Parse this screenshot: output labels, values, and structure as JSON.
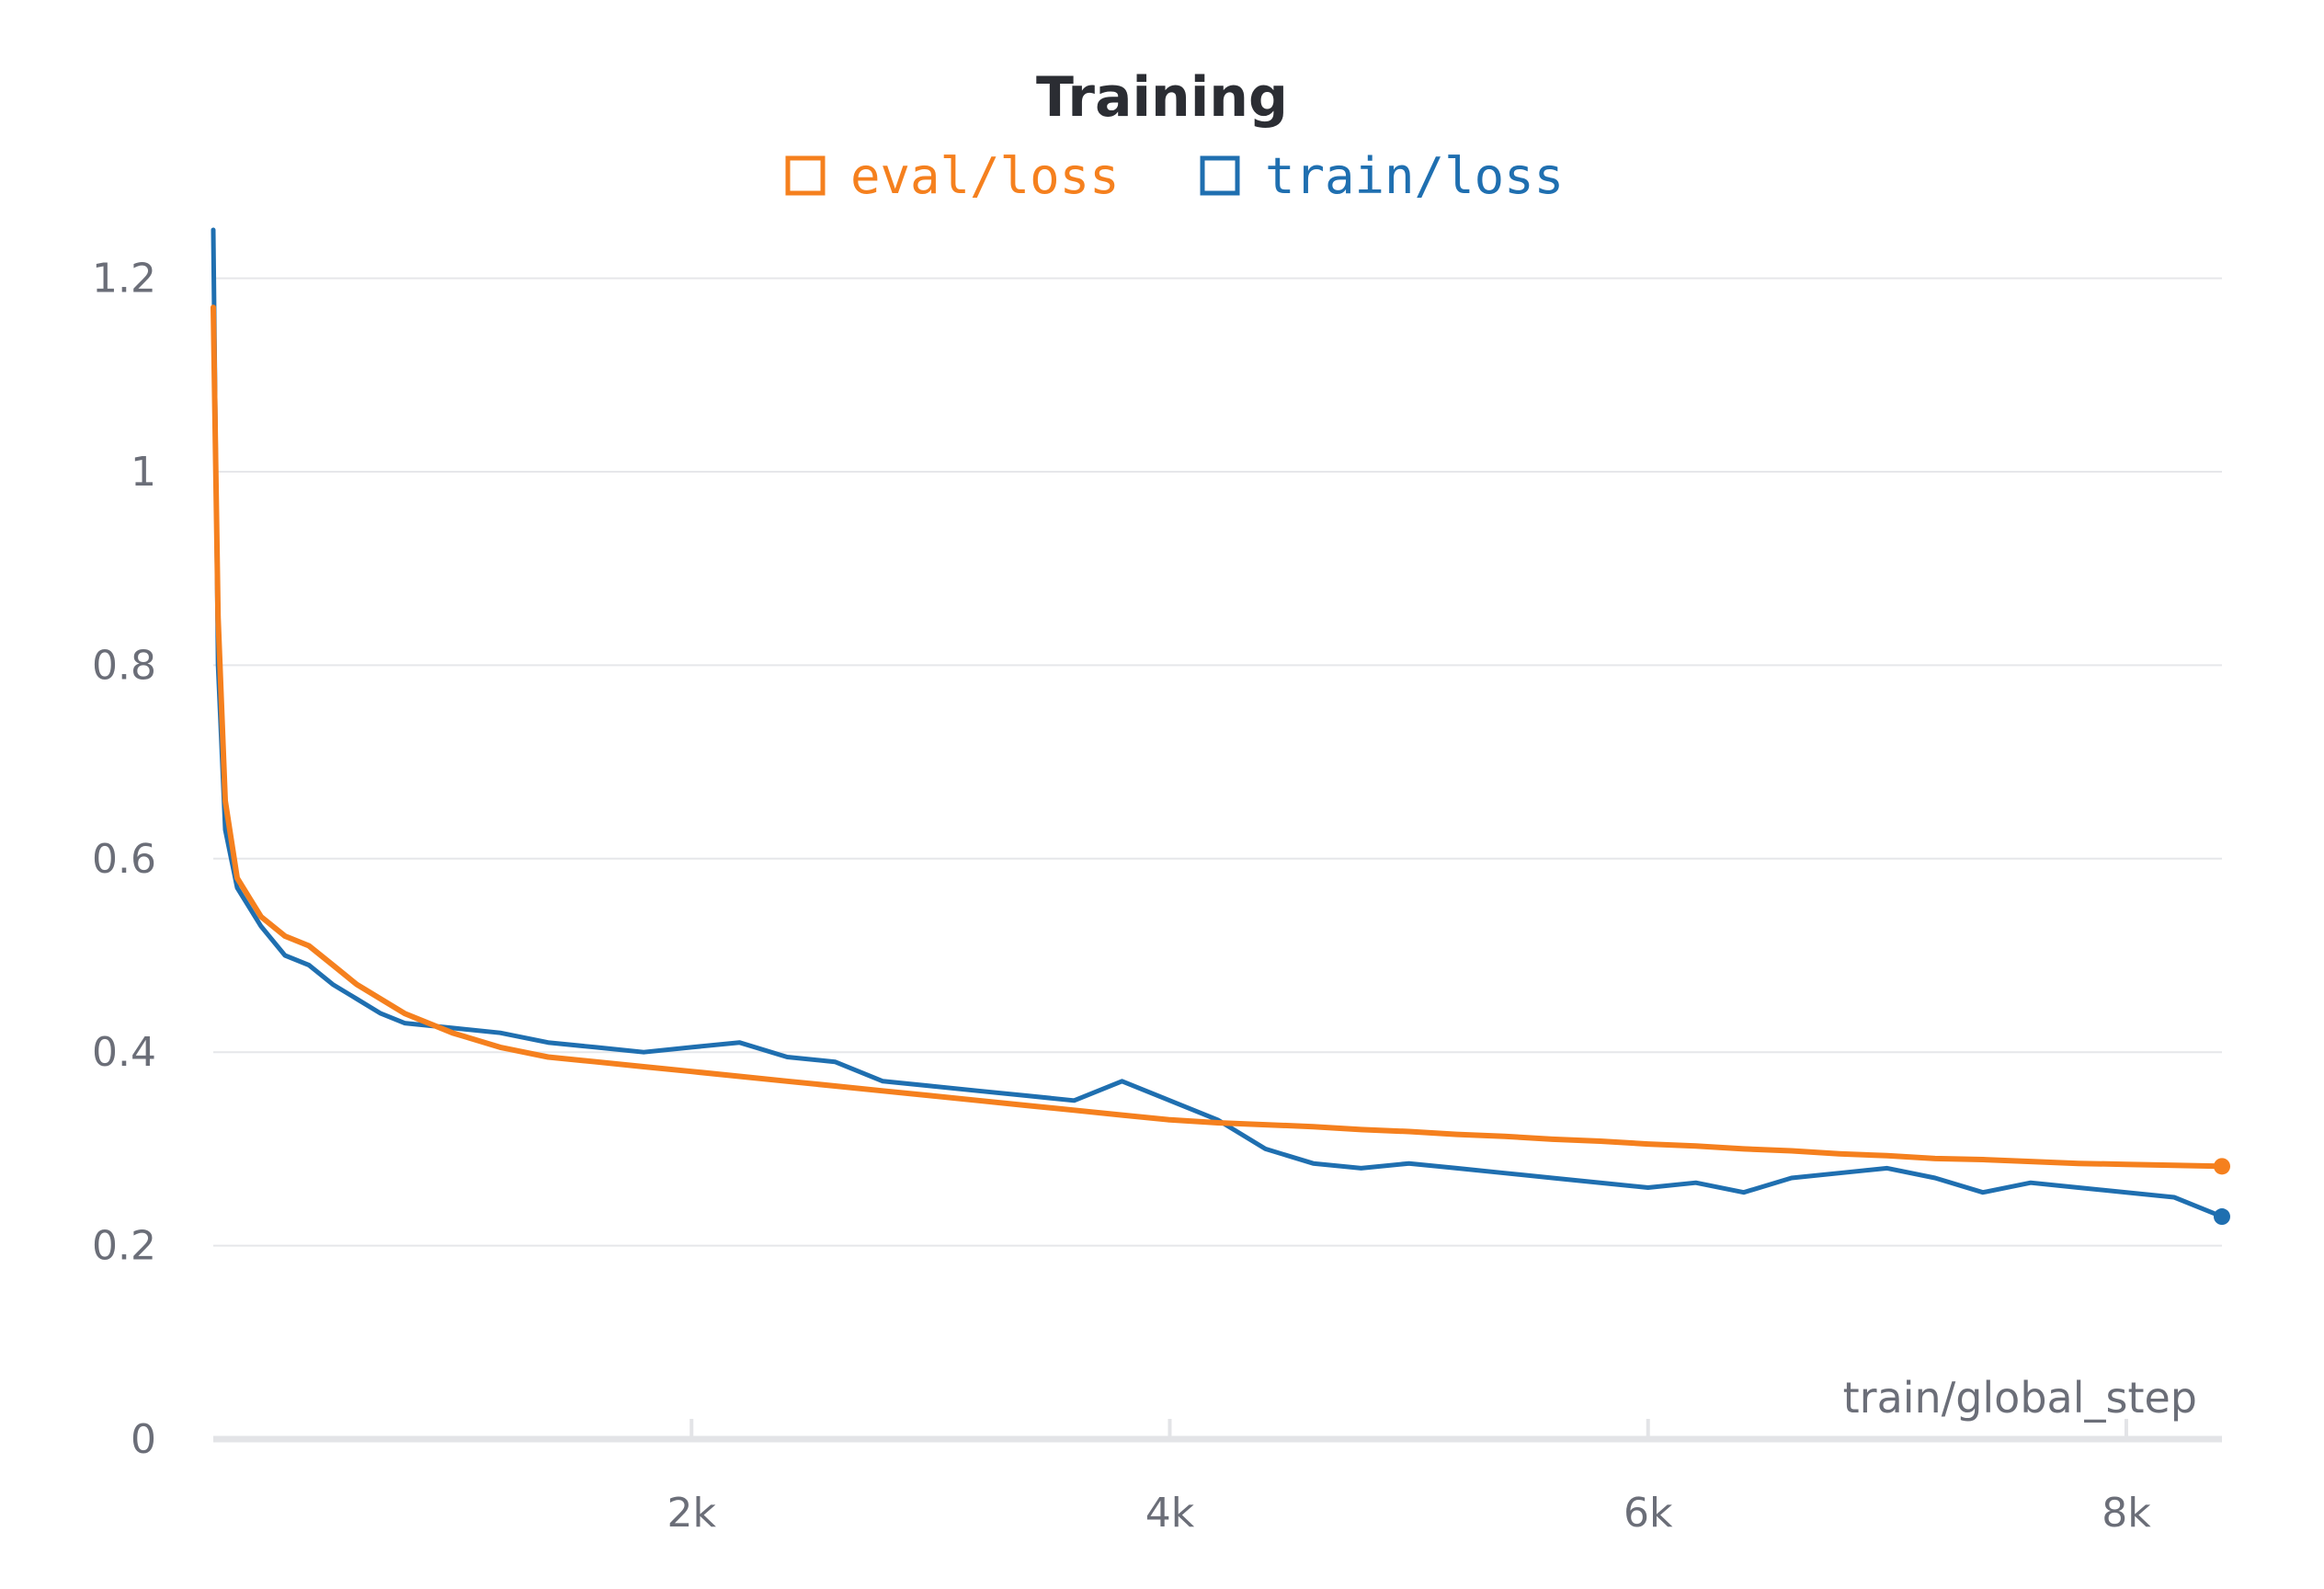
{
  "chart_data": {
    "type": "line",
    "title": "Training",
    "xlabel": "train/global_step",
    "ylabel": "",
    "xlim": [
      0,
      8400
    ],
    "ylim": [
      0,
      1.25
    ],
    "x_ticks": [
      {
        "value": 2000,
        "label": "2k"
      },
      {
        "value": 4000,
        "label": "4k"
      },
      {
        "value": 6000,
        "label": "6k"
      },
      {
        "value": 8000,
        "label": "8k"
      }
    ],
    "y_ticks": [
      {
        "value": 0,
        "label": "0"
      },
      {
        "value": 0.2,
        "label": "0.2"
      },
      {
        "value": 0.4,
        "label": "0.4"
      },
      {
        "value": 0.6,
        "label": "0.6"
      },
      {
        "value": 0.8,
        "label": "0.8"
      },
      {
        "value": 1,
        "label": "1"
      },
      {
        "value": 1.2,
        "label": "1.2"
      }
    ],
    "grid": true,
    "legend_position": "top-center",
    "series": [
      {
        "name": "eval/loss",
        "color": "#f5801e",
        "x": [
          0,
          20,
          50,
          100,
          150,
          200,
          300,
          400,
          500,
          600,
          700,
          800,
          1000,
          1200,
          1400,
          1600,
          1800,
          2000,
          2200,
          2400,
          2600,
          2800,
          3000,
          3200,
          3400,
          3600,
          3800,
          4000,
          4200,
          4400,
          4600,
          4800,
          5000,
          5200,
          5400,
          5600,
          5800,
          6000,
          6200,
          6400,
          6600,
          6800,
          7000,
          7200,
          7400,
          7600,
          7800,
          8000,
          8200,
          8400
        ],
        "values": [
          1.17,
          0.85,
          0.66,
          0.58,
          0.56,
          0.54,
          0.52,
          0.51,
          0.49,
          0.47,
          0.455,
          0.44,
          0.42,
          0.405,
          0.395,
          0.39,
          0.385,
          0.38,
          0.375,
          0.37,
          0.365,
          0.36,
          0.355,
          0.35,
          0.345,
          0.34,
          0.335,
          0.33,
          0.327,
          0.325,
          0.323,
          0.32,
          0.318,
          0.315,
          0.313,
          0.31,
          0.308,
          0.305,
          0.303,
          0.3,
          0.298,
          0.295,
          0.293,
          0.29,
          0.289,
          0.287,
          0.285,
          0.284,
          0.283,
          0.282
        ]
      },
      {
        "name": "train/loss",
        "color": "#1f6fb0",
        "x": [
          0,
          20,
          50,
          100,
          150,
          200,
          300,
          400,
          500,
          600,
          700,
          800,
          1000,
          1200,
          1400,
          1600,
          1800,
          2000,
          2200,
          2400,
          2600,
          2800,
          3000,
          3200,
          3400,
          3600,
          3800,
          4000,
          4200,
          4400,
          4600,
          4800,
          5000,
          5200,
          5400,
          5600,
          5800,
          6000,
          6200,
          6400,
          6600,
          6800,
          7000,
          7200,
          7400,
          7600,
          7800,
          8000,
          8200,
          8400
        ],
        "values": [
          1.25,
          0.8,
          0.63,
          0.57,
          0.55,
          0.53,
          0.5,
          0.49,
          0.47,
          0.455,
          0.44,
          0.43,
          0.425,
          0.42,
          0.41,
          0.405,
          0.4,
          0.405,
          0.41,
          0.395,
          0.39,
          0.37,
          0.365,
          0.36,
          0.355,
          0.35,
          0.37,
          0.35,
          0.33,
          0.3,
          0.285,
          0.28,
          0.285,
          0.28,
          0.275,
          0.27,
          0.265,
          0.26,
          0.265,
          0.255,
          0.27,
          0.275,
          0.28,
          0.27,
          0.255,
          0.265,
          0.26,
          0.255,
          0.25,
          0.23
        ]
      }
    ]
  }
}
